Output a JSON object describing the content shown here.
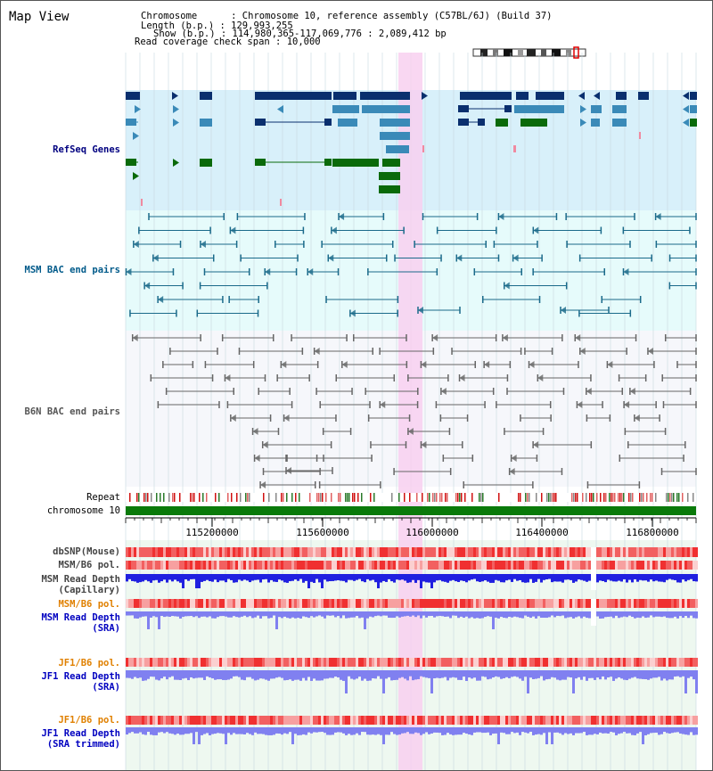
{
  "view_title": "Map View",
  "info": {
    "chromosome_label": "Chromosome",
    "chromosome_value": "Chromosome 10, reference assembly (C57BL/6J) (Build 37)",
    "length_label": "Length (b.p.)",
    "length_value": "129,993,255",
    "show_label": "Show (b.p.)",
    "show_value": "114,980,365-117,069,776 : 2,089,412 bp",
    "coverage_label": "Read coverage check span",
    "coverage_value": "10,000"
  },
  "tracks": {
    "refseq": "RefSeq Genes",
    "msm_bac": "MSM BAC end pairs",
    "b6n_bac": "B6N BAC end pairs",
    "repeat": "Repeat",
    "chromosome": "chromosome 10",
    "dbsnp": "dbSNP(Mouse)",
    "msm_b6_pol": "MSM/B6 pol.",
    "msm_depth_cap_1": "MSM Read Depth",
    "msm_depth_cap_2": "(Capillary)",
    "msm_b6_pol2": "MSM/B6 pol.",
    "msm_depth_sra_1": "MSM Read Depth",
    "msm_depth_sra_2": "(SRA)",
    "jf1_b6_pol": "JF1/B6 pol.",
    "jf1_depth_sra_1": "JF1 Read Depth",
    "jf1_depth_sra_2": "(SRA)",
    "jf1_b6_pol2": "JF1/B6 pol.",
    "jf1_depth_trim_1": "JF1 Read Depth",
    "jf1_depth_trim_2": "(SRA trimmed)"
  },
  "axis": {
    "ticks": [
      "115200000",
      "115600000",
      "116000000",
      "116400000",
      "116800000"
    ]
  },
  "colors": {
    "refseq_bg": "#d8f0fa",
    "bac_bg": "#e6fbfb",
    "b6n_bg": "#f6f7fb",
    "highlight": "#f8d0f0",
    "gene_dark": "#0a2f6e",
    "gene_mid": "#3a8ab8",
    "gene_green": "#0a6a0a",
    "bac_line": "#1a6a8a",
    "b6n_line": "#666666",
    "chrom_green": "#0a7a0a",
    "label_blue": "#000080",
    "label_orange": "#e08000",
    "depth_blue": "#2020e0",
    "depth_lavender": "#8080f0",
    "pol_red": "#f03030"
  }
}
